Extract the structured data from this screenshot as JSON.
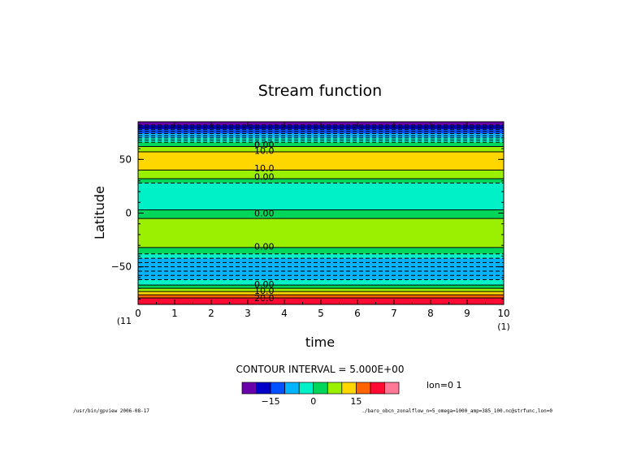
{
  "chart_data": {
    "type": "heatmap",
    "title": "Stream function",
    "xlabel": "time",
    "ylabel": "Latitude",
    "xlim": [
      0,
      10
    ],
    "ylim": [
      -85,
      85
    ],
    "x_ticks": [
      "0",
      "1",
      "2",
      "3",
      "4",
      "5",
      "6",
      "7",
      "8",
      "9",
      "10"
    ],
    "y_ticks": [
      "50",
      "0",
      "−50"
    ],
    "y_tick_values": [
      50,
      0,
      -50
    ],
    "x_index_left": "(11",
    "x_index_right": "(1)",
    "bands": [
      {
        "lat_top": 85,
        "lat_bottom": 82,
        "color": "#6a00aa"
      },
      {
        "lat_top": 82,
        "lat_bottom": 78,
        "color": "#0000c8"
      },
      {
        "lat_top": 78,
        "lat_bottom": 74,
        "color": "#0050ff"
      },
      {
        "lat_top": 74,
        "lat_bottom": 70,
        "color": "#00b4ff"
      },
      {
        "lat_top": 70,
        "lat_bottom": 66,
        "color": "#00f0c8"
      },
      {
        "lat_top": 66,
        "lat_bottom": 62,
        "color": "#00d75a"
      },
      {
        "lat_top": 62,
        "lat_bottom": 57,
        "color": "#9af000"
      },
      {
        "lat_top": 57,
        "lat_bottom": 40,
        "color": "#ffd700"
      },
      {
        "lat_top": 40,
        "lat_bottom": 32,
        "color": "#9af000"
      },
      {
        "lat_top": 32,
        "lat_bottom": 28,
        "color": "#00d75a"
      },
      {
        "lat_top": 28,
        "lat_bottom": 3,
        "color": "#00f0c8"
      },
      {
        "lat_top": 3,
        "lat_bottom": -5,
        "color": "#00d75a"
      },
      {
        "lat_top": -5,
        "lat_bottom": -32,
        "color": "#9af000"
      },
      {
        "lat_top": -32,
        "lat_bottom": -38,
        "color": "#00d75a"
      },
      {
        "lat_top": -38,
        "lat_bottom": -42,
        "color": "#00f0c8"
      },
      {
        "lat_top": -42,
        "lat_bottom": -62,
        "color": "#00b4ff"
      },
      {
        "lat_top": -62,
        "lat_bottom": -67,
        "color": "#00f0c8"
      },
      {
        "lat_top": -67,
        "lat_bottom": -70,
        "color": "#00d75a"
      },
      {
        "lat_top": -70,
        "lat_bottom": -73,
        "color": "#9af000"
      },
      {
        "lat_top": -73,
        "lat_bottom": -76,
        "color": "#ffd700"
      },
      {
        "lat_top": -76,
        "lat_bottom": -79,
        "color": "#ff6400"
      },
      {
        "lat_top": -79,
        "lat_bottom": -85,
        "color": "#ff0a32"
      }
    ],
    "contours_solid": [
      62,
      57,
      40,
      32,
      3,
      -5,
      -32,
      -67,
      -70,
      -73,
      -76,
      -79
    ],
    "contours_dashed": [
      82,
      80,
      78,
      76,
      74,
      72,
      70,
      68,
      66,
      28,
      -38,
      -42,
      -46,
      -50,
      -54,
      -58,
      -62
    ],
    "contour_labels": [
      {
        "text": "0.00",
        "lat": 64
      },
      {
        "text": "10.0",
        "lat": 58
      },
      {
        "text": "10.0",
        "lat": 42
      },
      {
        "text": "0.00",
        "lat": 34
      },
      {
        "text": "0.00",
        "lat": 0
      },
      {
        "text": "0.00",
        "lat": -31
      },
      {
        "text": "0.00",
        "lat": -66
      },
      {
        "text": "10.0",
        "lat": -72
      },
      {
        "text": "20.0",
        "lat": -79
      }
    ],
    "label_time": 3.45,
    "colorbar": {
      "colors": [
        "#6a00aa",
        "#0000c8",
        "#0050ff",
        "#00b4ff",
        "#00f0c8",
        "#00d75a",
        "#9af000",
        "#ffd700",
        "#ff6400",
        "#ff0a32",
        "#ff7896"
      ],
      "tick_labels": [
        "−15",
        "0",
        "15"
      ],
      "tick_boundaries": [
        2,
        5,
        8
      ]
    },
    "contour_interval": "CONTOUR INTERVAL = 5.000E+00",
    "annotation": "lon=0 1"
  },
  "footer": {
    "left": "/usr/bin/gpview  2006-08-17",
    "right": "./baro_obcn_zonalflow_n=5_omega=1000_amp=385_100.nc@strfunc,lon=0"
  }
}
